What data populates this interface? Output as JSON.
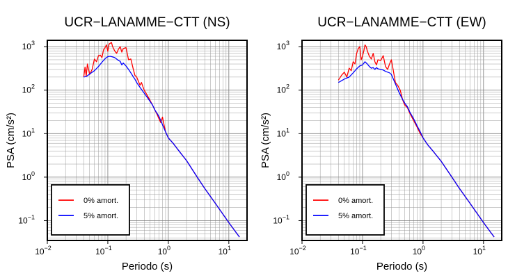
{
  "chart_data": [
    {
      "type": "line",
      "title": "UCR−LANAMME−CTT (NS)",
      "xlabel": "Periodo (s)",
      "ylabel": "PSA (cm/s²)",
      "x_scale": "log",
      "y_scale": "log",
      "xlim": [
        0.01,
        20
      ],
      "ylim": [
        0.035,
        1400
      ],
      "x_ticks": [
        {
          "base": "10",
          "exp": "−2"
        },
        {
          "base": "10",
          "exp": "−1"
        },
        {
          "base": "10",
          "exp": "0"
        },
        {
          "base": "10",
          "exp": "1"
        }
      ],
      "y_ticks": [
        {
          "base": "10",
          "exp": "−1"
        },
        {
          "base": "10",
          "exp": "0"
        },
        {
          "base": "10",
          "exp": "1"
        },
        {
          "base": "10",
          "exp": "2"
        },
        {
          "base": "10",
          "exp": "3"
        }
      ],
      "grid": true,
      "legend_position": "bottom-left",
      "series": [
        {
          "name": "0% amort.",
          "color": "#ff0000",
          "points": [
            [
              0.04,
              200
            ],
            [
              0.042,
              340
            ],
            [
              0.044,
              210
            ],
            [
              0.046,
              400
            ],
            [
              0.05,
              230
            ],
            [
              0.055,
              300
            ],
            [
              0.06,
              520
            ],
            [
              0.065,
              450
            ],
            [
              0.07,
              620
            ],
            [
              0.075,
              640
            ],
            [
              0.08,
              560
            ],
            [
              0.085,
              850
            ],
            [
              0.09,
              950
            ],
            [
              0.095,
              1100
            ],
            [
              0.1,
              780
            ],
            [
              0.105,
              1150
            ],
            [
              0.11,
              1200
            ],
            [
              0.115,
              1250
            ],
            [
              0.12,
              1000
            ],
            [
              0.13,
              800
            ],
            [
              0.14,
              700
            ],
            [
              0.15,
              880
            ],
            [
              0.16,
              1000
            ],
            [
              0.17,
              750
            ],
            [
              0.18,
              900
            ],
            [
              0.2,
              950
            ],
            [
              0.22,
              500
            ],
            [
              0.24,
              520
            ],
            [
              0.26,
              330
            ],
            [
              0.28,
              220
            ],
            [
              0.3,
              200
            ],
            [
              0.32,
              160
            ],
            [
              0.34,
              130
            ],
            [
              0.36,
              150
            ],
            [
              0.38,
              120
            ],
            [
              0.4,
              100
            ],
            [
              0.45,
              75
            ],
            [
              0.5,
              58
            ],
            [
              0.55,
              45
            ],
            [
              0.6,
              35
            ],
            [
              0.65,
              28
            ],
            [
              0.7,
              22
            ],
            [
              0.75,
              18
            ],
            [
              0.8,
              24
            ],
            [
              0.85,
              16
            ],
            [
              0.9,
              11
            ],
            [
              1.0,
              8
            ],
            [
              1.2,
              6
            ],
            [
              1.5,
              4
            ],
            [
              2,
              2.4
            ],
            [
              3,
              1.0
            ],
            [
              4,
              0.55
            ],
            [
              6,
              0.25
            ],
            [
              8,
              0.14
            ],
            [
              10,
              0.09
            ],
            [
              13,
              0.055
            ],
            [
              15,
              0.042
            ]
          ]
        },
        {
          "name": "5% amort.",
          "color": "#0000ff",
          "points": [
            [
              0.04,
              200
            ],
            [
              0.045,
              210
            ],
            [
              0.05,
              235
            ],
            [
              0.06,
              280
            ],
            [
              0.07,
              350
            ],
            [
              0.08,
              440
            ],
            [
              0.09,
              530
            ],
            [
              0.1,
              590
            ],
            [
              0.11,
              600
            ],
            [
              0.12,
              580
            ],
            [
              0.13,
              560
            ],
            [
              0.14,
              520
            ],
            [
              0.15,
              480
            ],
            [
              0.16,
              460
            ],
            [
              0.17,
              380
            ],
            [
              0.18,
              420
            ],
            [
              0.2,
              360
            ],
            [
              0.22,
              300
            ],
            [
              0.24,
              250
            ],
            [
              0.26,
              210
            ],
            [
              0.28,
              180
            ],
            [
              0.3,
              150
            ],
            [
              0.35,
              110
            ],
            [
              0.4,
              85
            ],
            [
              0.45,
              68
            ],
            [
              0.5,
              55
            ],
            [
              0.55,
              45
            ],
            [
              0.6,
              35
            ],
            [
              0.7,
              25
            ],
            [
              0.8,
              16
            ],
            [
              0.9,
              11
            ],
            [
              1.0,
              8
            ],
            [
              1.2,
              6
            ],
            [
              1.5,
              4
            ],
            [
              2,
              2.4
            ],
            [
              3,
              1.0
            ],
            [
              4,
              0.55
            ],
            [
              6,
              0.25
            ],
            [
              8,
              0.14
            ],
            [
              10,
              0.09
            ],
            [
              13,
              0.055
            ],
            [
              15,
              0.042
            ]
          ]
        }
      ]
    },
    {
      "type": "line",
      "title": "UCR−LANAMME−CTT (EW)",
      "xlabel": "Periodo (s)",
      "ylabel": "PSA (cm/s²)",
      "x_scale": "log",
      "y_scale": "log",
      "xlim": [
        0.01,
        20
      ],
      "ylim": [
        0.035,
        1400
      ],
      "x_ticks": [
        {
          "base": "10",
          "exp": "−2"
        },
        {
          "base": "10",
          "exp": "−1"
        },
        {
          "base": "10",
          "exp": "0"
        },
        {
          "base": "10",
          "exp": "1"
        }
      ],
      "y_ticks": [
        {
          "base": "10",
          "exp": "−1"
        },
        {
          "base": "10",
          "exp": "0"
        },
        {
          "base": "10",
          "exp": "1"
        },
        {
          "base": "10",
          "exp": "2"
        },
        {
          "base": "10",
          "exp": "3"
        }
      ],
      "grid": true,
      "legend_position": "bottom-left",
      "series": [
        {
          "name": "0% amort.",
          "color": "#ff0000",
          "points": [
            [
              0.04,
              170
            ],
            [
              0.045,
              220
            ],
            [
              0.05,
              260
            ],
            [
              0.055,
              200
            ],
            [
              0.06,
              320
            ],
            [
              0.065,
              280
            ],
            [
              0.07,
              450
            ],
            [
              0.075,
              400
            ],
            [
              0.08,
              700
            ],
            [
              0.085,
              900
            ],
            [
              0.09,
              1000
            ],
            [
              0.095,
              500
            ],
            [
              0.1,
              600
            ],
            [
              0.105,
              800
            ],
            [
              0.11,
              1100
            ],
            [
              0.115,
              1000
            ],
            [
              0.12,
              800
            ],
            [
              0.13,
              600
            ],
            [
              0.14,
              520
            ],
            [
              0.15,
              700
            ],
            [
              0.16,
              450
            ],
            [
              0.17,
              380
            ],
            [
              0.18,
              500
            ],
            [
              0.2,
              480
            ],
            [
              0.22,
              620
            ],
            [
              0.24,
              350
            ],
            [
              0.26,
              300
            ],
            [
              0.28,
              400
            ],
            [
              0.3,
              500
            ],
            [
              0.32,
              300
            ],
            [
              0.35,
              150
            ],
            [
              0.38,
              130
            ],
            [
              0.42,
              100
            ],
            [
              0.46,
              60
            ],
            [
              0.5,
              45
            ],
            [
              0.55,
              40
            ],
            [
              0.6,
              30
            ],
            [
              0.7,
              20
            ],
            [
              0.8,
              14
            ],
            [
              0.9,
              10
            ],
            [
              1.0,
              8
            ],
            [
              1.2,
              5.5
            ],
            [
              1.5,
              3.8
            ],
            [
              2,
              2.3
            ],
            [
              3,
              1.0
            ],
            [
              4,
              0.55
            ],
            [
              6,
              0.25
            ],
            [
              8,
              0.14
            ],
            [
              10,
              0.09
            ],
            [
              13,
              0.055
            ],
            [
              15,
              0.042
            ]
          ]
        },
        {
          "name": "5% amort.",
          "color": "#0000ff",
          "points": [
            [
              0.04,
              150
            ],
            [
              0.05,
              180
            ],
            [
              0.06,
              200
            ],
            [
              0.07,
              250
            ],
            [
              0.08,
              310
            ],
            [
              0.09,
              360
            ],
            [
              0.1,
              380
            ],
            [
              0.11,
              450
            ],
            [
              0.12,
              400
            ],
            [
              0.13,
              350
            ],
            [
              0.14,
              320
            ],
            [
              0.15,
              330
            ],
            [
              0.16,
              300
            ],
            [
              0.17,
              330
            ],
            [
              0.18,
              310
            ],
            [
              0.2,
              300
            ],
            [
              0.22,
              290
            ],
            [
              0.24,
              270
            ],
            [
              0.26,
              260
            ],
            [
              0.28,
              250
            ],
            [
              0.3,
              230
            ],
            [
              0.35,
              140
            ],
            [
              0.4,
              90
            ],
            [
              0.45,
              65
            ],
            [
              0.5,
              50
            ],
            [
              0.55,
              42
            ],
            [
              0.6,
              32
            ],
            [
              0.7,
              22
            ],
            [
              0.8,
              15
            ],
            [
              0.9,
              11
            ],
            [
              1.0,
              8
            ],
            [
              1.2,
              5.5
            ],
            [
              1.5,
              3.8
            ],
            [
              2,
              2.3
            ],
            [
              3,
              1.0
            ],
            [
              4,
              0.55
            ],
            [
              6,
              0.25
            ],
            [
              8,
              0.14
            ],
            [
              10,
              0.09
            ],
            [
              13,
              0.055
            ],
            [
              15,
              0.042
            ]
          ]
        }
      ]
    }
  ]
}
